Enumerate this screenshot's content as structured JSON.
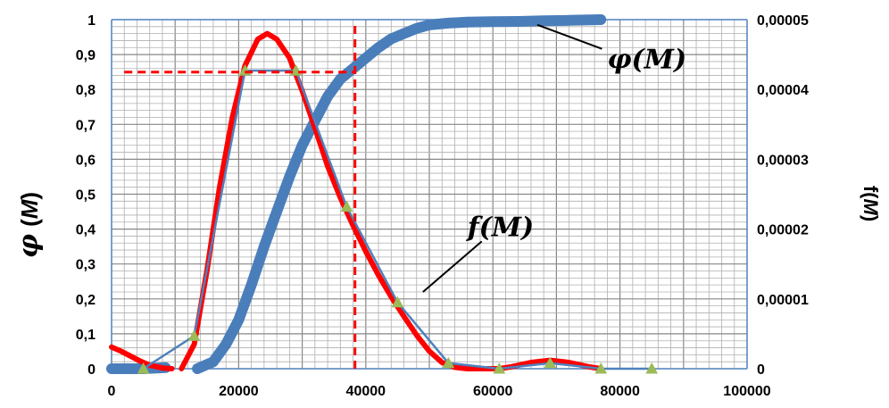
{
  "chart_data": {
    "type": "line",
    "title": "",
    "xlabel": "",
    "ylabel_left": {
      "symbol": "φ",
      "arg": "M",
      "open": "(",
      "close": ")"
    },
    "ylabel_right": {
      "prefix": "f(",
      "arg": "M",
      "close": ")"
    },
    "xlim": [
      0,
      100000
    ],
    "ylim_left": [
      0,
      1
    ],
    "ylim_right": [
      0,
      5e-05
    ],
    "x_ticks": [
      "0",
      "20000",
      "40000",
      "60000",
      "80000",
      "100000"
    ],
    "y_ticks_left": [
      "0",
      "0,1",
      "0,2",
      "0,3",
      "0,4",
      "0,5",
      "0,6",
      "0,7",
      "0,8",
      "0,9",
      "1"
    ],
    "y_ticks_right": [
      "0",
      "0,00001",
      "0,00002",
      "0,00003",
      "0,00004",
      "0,00005"
    ],
    "grid": true,
    "series": [
      {
        "axis": "left",
        "style": "thick-blue",
        "color": "#4a7ebb",
        "points": [
          [
            0,
            0
          ],
          [
            5000,
            0
          ],
          [
            8500,
            0.003
          ]
        ]
      },
      {
        "axis": "left",
        "style": "thick-blue",
        "color": "#4a7ebb",
        "points": [
          [
            13500,
            0
          ],
          [
            16000,
            0.02
          ],
          [
            18000,
            0.07
          ],
          [
            20000,
            0.14
          ],
          [
            22000,
            0.24
          ],
          [
            24000,
            0.35
          ],
          [
            26000,
            0.45
          ],
          [
            28000,
            0.55
          ],
          [
            30000,
            0.64
          ],
          [
            32000,
            0.71
          ],
          [
            34000,
            0.78
          ],
          [
            36000,
            0.83
          ],
          [
            38000,
            0.86
          ],
          [
            40000,
            0.89
          ],
          [
            42000,
            0.92
          ],
          [
            44000,
            0.945
          ],
          [
            46000,
            0.96
          ],
          [
            48000,
            0.975
          ],
          [
            50000,
            0.985
          ],
          [
            53000,
            0.99
          ],
          [
            56000,
            0.993
          ],
          [
            60000,
            0.994
          ],
          [
            64000,
            0.995
          ],
          [
            68000,
            0.997
          ],
          [
            72000,
            0.998
          ],
          [
            77000,
            1.0
          ]
        ]
      },
      {
        "axis": "right",
        "style": "thick-red",
        "color": "#ff0000",
        "points": [
          [
            0,
            3.1e-06
          ],
          [
            1500,
            2.5e-06
          ],
          [
            3000,
            1.8e-06
          ],
          [
            4500,
            1.1e-06
          ],
          [
            6000,
            5e-07
          ],
          [
            8000,
            1e-07
          ],
          [
            9500,
            0.0
          ]
        ]
      },
      {
        "axis": "right",
        "style": "thick-red",
        "color": "#ff0000",
        "points": [
          [
            11000,
            0.0
          ],
          [
            13000,
            3.5e-06
          ],
          [
            15000,
            1.4e-05
          ],
          [
            17000,
            2.6e-05
          ],
          [
            19000,
            3.6e-05
          ],
          [
            21000,
            4.34e-05
          ],
          [
            23000,
            4.72e-05
          ],
          [
            24500,
            4.8e-05
          ],
          [
            26000,
            4.72e-05
          ],
          [
            28000,
            4.45e-05
          ],
          [
            30000,
            3.98e-05
          ],
          [
            32000,
            3.45e-05
          ],
          [
            34000,
            2.9e-05
          ],
          [
            36000,
            2.45e-05
          ],
          [
            38000,
            2.05e-05
          ],
          [
            40000,
            1.68e-05
          ],
          [
            42000,
            1.34e-05
          ],
          [
            44000,
            1.03e-05
          ],
          [
            46000,
            7.5e-06
          ],
          [
            48000,
            4.8e-06
          ],
          [
            50000,
            2.5e-06
          ],
          [
            52000,
            9e-07
          ],
          [
            54000,
            2e-07
          ],
          [
            56000,
            0.0
          ],
          [
            58000,
            0.0
          ],
          [
            61000,
            0.0
          ],
          [
            63000,
            3e-07
          ],
          [
            66000,
            9e-07
          ],
          [
            69000,
            1.2e-06
          ],
          [
            72000,
            9e-07
          ],
          [
            75000,
            3e-07
          ],
          [
            77000,
            0.0
          ]
        ]
      },
      {
        "axis": "right",
        "style": "thin-blue-markers",
        "color": "#4f81bd",
        "marker_color": "#9bbb59",
        "points": [
          [
            5000,
            0.0
          ],
          [
            13000,
            4.7e-06
          ],
          [
            21000,
            4.27e-05
          ],
          [
            29000,
            4.27e-05
          ],
          [
            37000,
            2.32e-05
          ],
          [
            45000,
            9.5e-06
          ],
          [
            53000,
            8e-07
          ],
          [
            61000,
            0.0
          ],
          [
            69000,
            8e-07
          ],
          [
            77000,
            0.0
          ],
          [
            85000,
            0.0
          ]
        ]
      },
      {
        "axis": "left",
        "style": "dashed-red",
        "color": "#ff0000",
        "points": [
          [
            2000,
            0.85
          ],
          [
            38300,
            0.85
          ]
        ]
      },
      {
        "axis": "left",
        "style": "dashed-red",
        "color": "#ff0000",
        "points": [
          [
            38300,
            0
          ],
          [
            38300,
            0.99
          ]
        ]
      }
    ],
    "annotations": [
      {
        "symbol": "φ",
        "arg": "M",
        "open": "(",
        "close": ")",
        "x": 78000,
        "y": 0.86,
        "axis": "left",
        "leader_to": [
          67000,
          0.985
        ]
      },
      {
        "symbol": "f",
        "arg": "M",
        "open": "(",
        "close": ")",
        "x": 56000,
        "y": 0.38,
        "axis": "left",
        "leader_to": [
          49000,
          0.22
        ]
      }
    ],
    "colors": {
      "axis": "#4f81bd",
      "grid_major": "#878787",
      "grid_minor": "#b0b0b0"
    }
  }
}
